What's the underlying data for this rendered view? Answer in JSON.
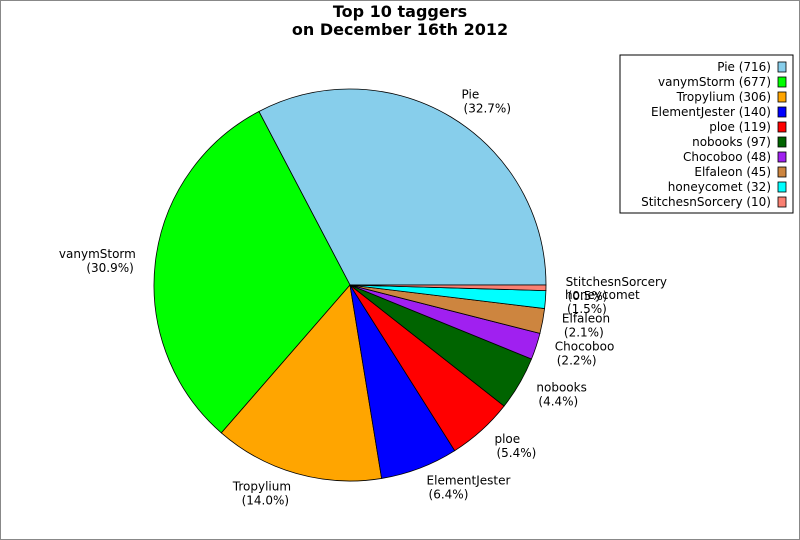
{
  "chart_data": {
    "type": "pie",
    "title": [
      "Top 10 taggers",
      "on December 16th 2012"
    ],
    "categories": [
      "Pie",
      "vanymStorm",
      "Tropylium",
      "ElementJester",
      "ploe",
      "nobooks",
      "Chocoboo",
      "Elfaleon",
      "honeycomet",
      "StitchesnSorcery"
    ],
    "values": [
      716,
      677,
      306,
      140,
      119,
      97,
      48,
      45,
      32,
      10
    ],
    "percent_labels": [
      "(32.7%)",
      "(30.9%)",
      "(14.0%)",
      "(6.4%)",
      "(5.4%)",
      "(4.4%)",
      "(2.2%)",
      "(2.1%)",
      "(1.5%)",
      "(0.5%)"
    ],
    "legend_labels": [
      "Pie (716)",
      "vanymStorm (677)",
      "Tropylium (306)",
      "ElementJester (140)",
      "ploe (119)",
      "nobooks (97)",
      "Chocoboo (48)",
      "Elfaleon (45)",
      "honeycomet (32)",
      "StitchesnSorcery (10)"
    ],
    "colors": [
      "#87ceeb",
      "#00ff00",
      "#ffa500",
      "#0000ff",
      "#ff0000",
      "#006400",
      "#a020f0",
      "#cd853f",
      "#00ffff",
      "#fa8072"
    ],
    "legend": "upper right"
  }
}
